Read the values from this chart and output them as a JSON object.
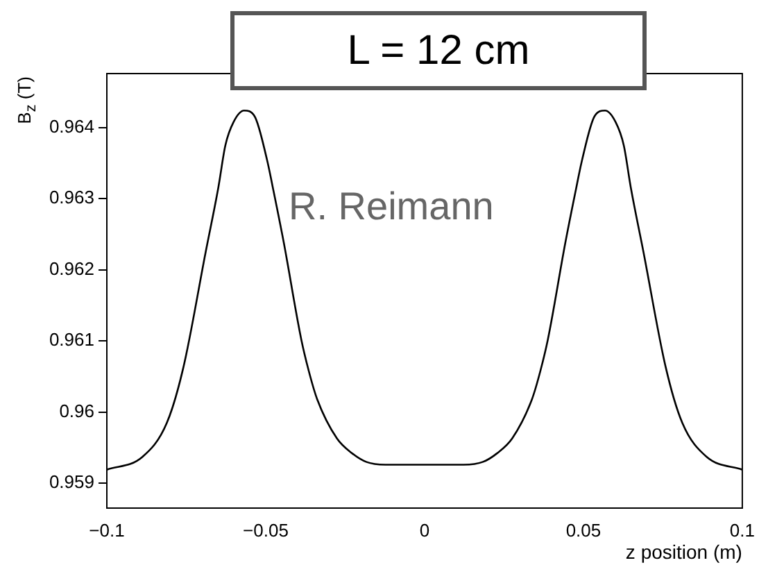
{
  "chart_data": {
    "type": "line",
    "title": "L = 12 cm",
    "xlabel": "z position (m)",
    "ylabel": "B$_{z}$ (T)",
    "annotations": [
      "R. Reimann"
    ],
    "x": [
      -0.1,
      -0.0888,
      -0.0811,
      -0.0759,
      -0.0689,
      -0.0649,
      -0.0627,
      -0.0601,
      -0.0568,
      -0.0535,
      -0.0496,
      -0.0475,
      -0.0443,
      -0.0388,
      -0.0364,
      -0.0338,
      -0.0276,
      -0.0228,
      -0.0184,
      -0.0123,
      0,
      0.0123,
      0.0184,
      0.0228,
      0.0276,
      0.0338,
      0.0364,
      0.0388,
      0.0443,
      0.0475,
      0.0496,
      0.0535,
      0.0568,
      0.0601,
      0.0627,
      0.0649,
      0.0689,
      0.0759,
      0.0811,
      0.0888,
      0.1
    ],
    "series": [
      {
        "color": "#000000",
        "values": [
          0.95919,
          0.95937,
          0.95985,
          0.96063,
          0.96225,
          0.96316,
          0.96375,
          0.96408,
          0.96424,
          0.96416,
          0.96355,
          0.9631,
          0.96238,
          0.96102,
          0.96057,
          0.96018,
          0.95963,
          0.95942,
          0.9593,
          0.95926,
          0.95926,
          0.95926,
          0.9593,
          0.95942,
          0.95963,
          0.96018,
          0.96057,
          0.96102,
          0.96238,
          0.9631,
          0.96355,
          0.96416,
          0.96424,
          0.96408,
          0.96375,
          0.96316,
          0.96225,
          0.96063,
          0.95985,
          0.95937,
          0.95919
        ]
      }
    ],
    "xlim": [
      -0.1,
      0.1
    ],
    "xticks": [
      -0.1,
      -0.05,
      0,
      0.05,
      0.1
    ],
    "ylim": [
      0.95865,
      0.96476
    ],
    "yticks": [
      0.959,
      0.96,
      0.961,
      0.962,
      0.963,
      0.964
    ],
    "grid": false,
    "legend": false,
    "marker": "none",
    "line_style": "solid"
  }
}
